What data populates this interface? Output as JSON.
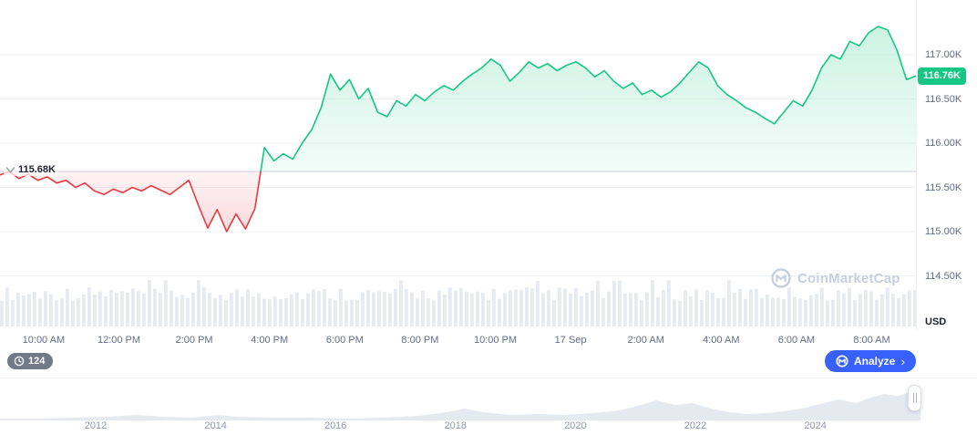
{
  "watermark": {
    "text": "CoinMarketCap"
  },
  "toolbar": {
    "candle_countdown": "124",
    "analyze_label": "Analyze",
    "analyze_color": "#3861fb"
  },
  "chart_data": {
    "type": "area",
    "title": "Intraday price chart with baseline (red below / green above)",
    "currency_label": "USD",
    "up_color": "#16c784",
    "down_color": "#ea3943",
    "grid": true,
    "baseline": {
      "label": "115.68K",
      "value": 115.68
    },
    "current_price": {
      "label": "116.76K",
      "value": 116.76
    },
    "y_ticks": [
      {
        "label": "117.00K",
        "value": 117.0
      },
      {
        "label": "116.50K",
        "value": 116.5
      },
      {
        "label": "116.00K",
        "value": 116.0
      },
      {
        "label": "115.50K",
        "value": 115.5
      },
      {
        "label": "115.00K",
        "value": 115.0
      },
      {
        "label": "114.50K",
        "value": 114.5
      }
    ],
    "x_ticks": [
      "10:00 AM",
      "12:00 PM",
      "2:00 PM",
      "4:00 PM",
      "6:00 PM",
      "8:00 PM",
      "10:00 PM",
      "17 Sep",
      "2:00 AM",
      "4:00 AM",
      "6:00 AM",
      "8:00 AM"
    ],
    "series": {
      "name": "Price (thousand USD)",
      "interval_minutes": 15,
      "prices": [
        115.64,
        115.68,
        115.6,
        115.65,
        115.58,
        115.62,
        115.55,
        115.58,
        115.5,
        115.55,
        115.46,
        115.42,
        115.48,
        115.44,
        115.5,
        115.46,
        115.52,
        115.47,
        115.42,
        115.5,
        115.58,
        115.3,
        115.04,
        115.25,
        115.0,
        115.2,
        115.03,
        115.26,
        115.95,
        115.8,
        115.88,
        115.82,
        116.0,
        116.15,
        116.4,
        116.78,
        116.6,
        116.72,
        116.5,
        116.62,
        116.35,
        116.3,
        116.48,
        116.42,
        116.55,
        116.48,
        116.58,
        116.65,
        116.6,
        116.7,
        116.78,
        116.85,
        116.95,
        116.88,
        116.7,
        116.8,
        116.92,
        116.85,
        116.9,
        116.82,
        116.88,
        116.92,
        116.85,
        116.75,
        116.82,
        116.7,
        116.62,
        116.68,
        116.55,
        116.6,
        116.52,
        116.58,
        116.68,
        116.8,
        116.92,
        116.85,
        116.65,
        116.55,
        116.48,
        116.4,
        116.35,
        116.28,
        116.22,
        116.35,
        116.48,
        116.42,
        116.6,
        116.85,
        117.0,
        116.95,
        117.15,
        117.1,
        117.25,
        117.32,
        117.28,
        117.05,
        116.72,
        116.76
      ]
    },
    "volume": {
      "bar_count": 168,
      "color": "#e7ebf1"
    },
    "timeline": {
      "years": [
        "2012",
        "2014",
        "2016",
        "2018",
        "2020",
        "2022",
        "2024"
      ],
      "silhouette_color": "#e5eaf1",
      "silhouette": [
        [
          0,
          2
        ],
        [
          40,
          2
        ],
        [
          80,
          3
        ],
        [
          120,
          4
        ],
        [
          150,
          6
        ],
        [
          180,
          4
        ],
        [
          210,
          3
        ],
        [
          240,
          6
        ],
        [
          260,
          4
        ],
        [
          300,
          3
        ],
        [
          340,
          3
        ],
        [
          380,
          2
        ],
        [
          420,
          3
        ],
        [
          460,
          5
        ],
        [
          490,
          9
        ],
        [
          510,
          13
        ],
        [
          530,
          9
        ],
        [
          560,
          6
        ],
        [
          590,
          7
        ],
        [
          620,
          6
        ],
        [
          650,
          8
        ],
        [
          680,
          11
        ],
        [
          700,
          16
        ],
        [
          720,
          22
        ],
        [
          740,
          17
        ],
        [
          760,
          19
        ],
        [
          780,
          13
        ],
        [
          800,
          9
        ],
        [
          820,
          7
        ],
        [
          840,
          8
        ],
        [
          860,
          10
        ],
        [
          880,
          13
        ],
        [
          900,
          18
        ],
        [
          920,
          23
        ],
        [
          940,
          19
        ],
        [
          955,
          25
        ],
        [
          970,
          29
        ],
        [
          985,
          27
        ],
        [
          1000,
          31
        ],
        [
          1010,
          32
        ]
      ]
    }
  }
}
